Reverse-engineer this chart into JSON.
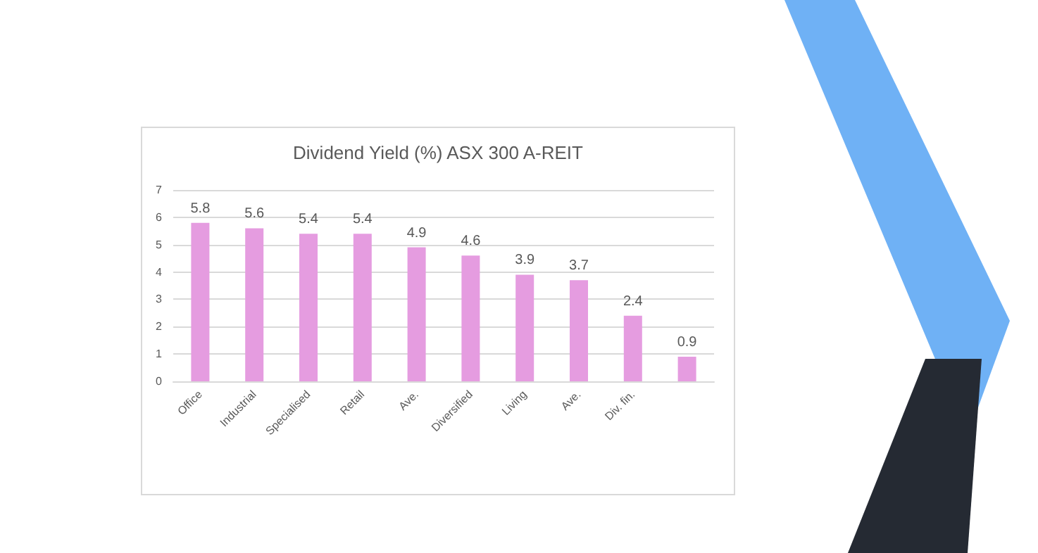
{
  "chart_data": {
    "type": "bar",
    "title": "Dividend Yield (%) ASX 300 A-REIT",
    "categories": [
      "Office",
      "Industrial",
      "Specialised",
      "Retail",
      "Ave.",
      "Diversified",
      "Living",
      "Ave.",
      "Div. fin.",
      null
    ],
    "values": [
      5.8,
      5.6,
      5.4,
      5.4,
      4.9,
      4.6,
      3.9,
      3.7,
      2.4,
      0.9
    ],
    "color": "#e59ce0",
    "ylim": [
      0,
      7
    ],
    "yticks": [
      0,
      1,
      2,
      3,
      4,
      5,
      6,
      7
    ],
    "grid": "y",
    "data_labels": true
  }
}
